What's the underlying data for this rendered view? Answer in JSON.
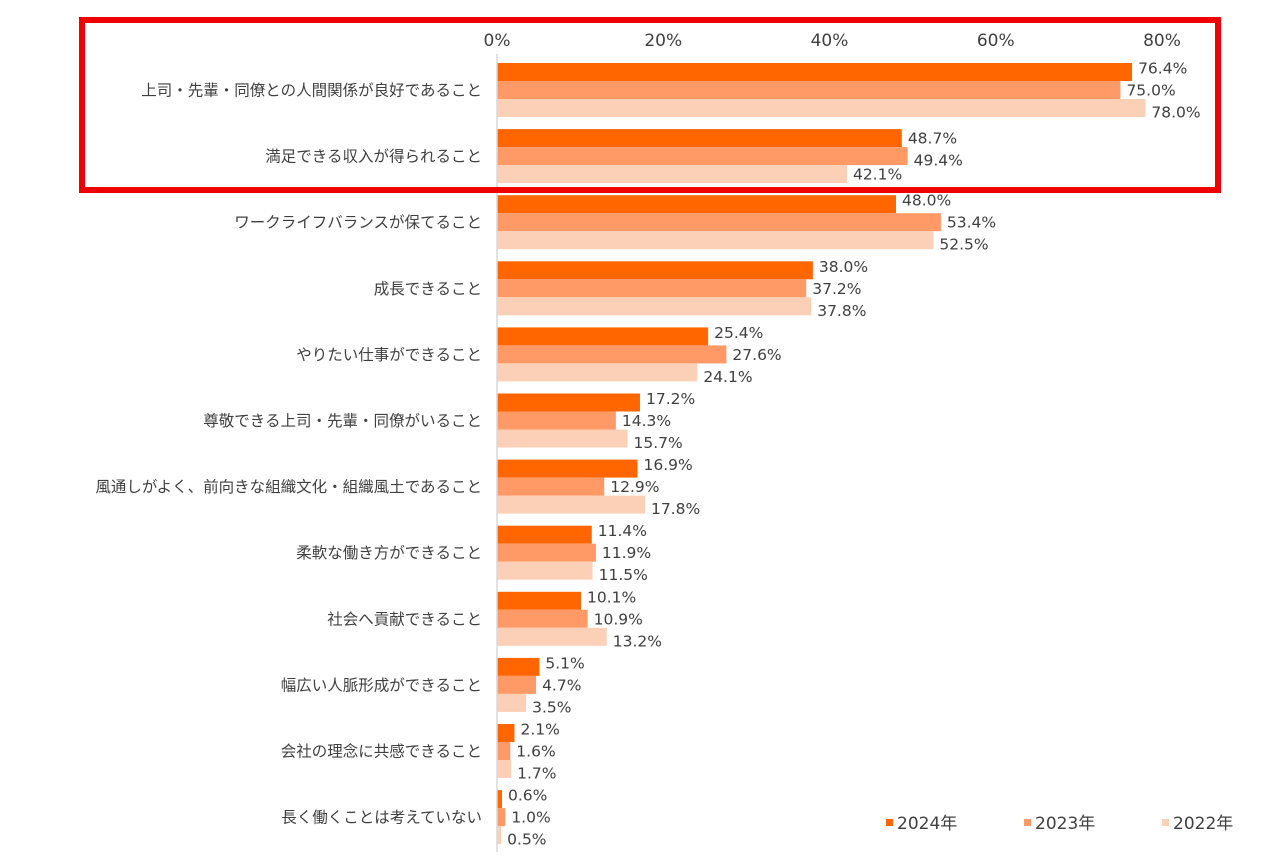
{
  "chart_data": {
    "type": "bar",
    "orientation": "horizontal",
    "title": "",
    "xlabel": "",
    "ylabel": "",
    "xlim": [
      0,
      80
    ],
    "x_ticks": [
      0,
      20,
      40,
      60,
      80
    ],
    "x_tick_labels": [
      "0%",
      "20%",
      "40%",
      "60%",
      "80%"
    ],
    "grid": false,
    "legend_position": "bottom-right",
    "categories": [
      "上司・先輩・同僚との人間関係が良好であること",
      "満足できる収入が得られること",
      "ワークライフバランスが保てること",
      "成長できること",
      "やりたい仕事ができること",
      "尊敬できる上司・先輩・同僚がいること",
      "風通しがよく、前向きな組織文化・組織風土であること",
      "柔軟な働き方ができること",
      "社会へ貢献できること",
      "幅広い人脈形成ができること",
      "会社の理念に共感できること",
      "長く働くことは考えていない"
    ],
    "series": [
      {
        "name": "2024年",
        "color": "#ff6600",
        "values": [
          76.4,
          48.7,
          48.0,
          38.0,
          25.4,
          17.2,
          16.9,
          11.4,
          10.1,
          5.1,
          2.1,
          0.6
        ],
        "labels": [
          "76.4%",
          "48.7%",
          "48.0%",
          "38.0%",
          "25.4%",
          "17.2%",
          "16.9%",
          "11.4%",
          "10.1%",
          "5.1%",
          "2.1%",
          "0.6%"
        ]
      },
      {
        "name": "2023年",
        "color": "#ff9966",
        "values": [
          75.0,
          49.4,
          53.4,
          37.2,
          27.6,
          14.3,
          12.9,
          11.9,
          10.9,
          4.7,
          1.6,
          1.0
        ],
        "labels": [
          "75.0%",
          "49.4%",
          "53.4%",
          "37.2%",
          "27.6%",
          "14.3%",
          "12.9%",
          "11.9%",
          "10.9%",
          "4.7%",
          "1.6%",
          "1.0%"
        ]
      },
      {
        "name": "2022年",
        "color": "#fccfb7",
        "values": [
          78.0,
          42.1,
          52.5,
          37.8,
          24.1,
          15.7,
          17.8,
          11.5,
          13.2,
          3.5,
          1.7,
          0.5
        ],
        "labels": [
          "78.0%",
          "42.1%",
          "52.5%",
          "37.8%",
          "24.1%",
          "15.7%",
          "17.8%",
          "11.5%",
          "13.2%",
          "3.5%",
          "1.7%",
          "0.5%"
        ]
      }
    ],
    "annotation": {
      "type": "highlight-box",
      "color": "#ee0000",
      "covers": [
        "上司・先輩・同僚との人間関係が良好であること",
        "満足できる収入が得られること"
      ]
    }
  }
}
